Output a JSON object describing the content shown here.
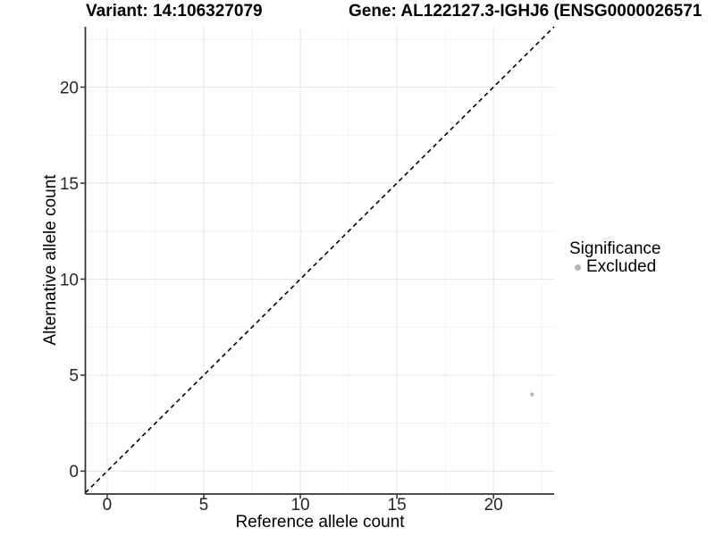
{
  "chart_data": {
    "type": "scatter",
    "titles": {
      "variant": "Variant: 14:106327079",
      "gene": "Gene: AL122127.3-IGHJ6 (ENSG0000026571"
    },
    "xlabel": "Reference allele count",
    "ylabel": "Alternative allele count",
    "xlim": [
      -1.13,
      23.14
    ],
    "ylim": [
      -1.19,
      23.14
    ],
    "x_ticks": [
      0,
      5,
      10,
      15,
      20
    ],
    "y_ticks": [
      0,
      5,
      10,
      15,
      20
    ],
    "x_minor_ticks": [
      2.5,
      7.5,
      12.5,
      17.5,
      22.5
    ],
    "y_minor_ticks": [
      2.5,
      7.5,
      12.5,
      17.5,
      22.5
    ],
    "grid": true,
    "points": [
      {
        "x": 22,
        "y": 4,
        "significance": "Excluded"
      }
    ],
    "abline": {
      "slope": 1,
      "intercept": 0,
      "linetype": "dashed",
      "color": "#000000"
    },
    "legend": {
      "title": "Significance",
      "position": "right",
      "items": [
        {
          "label": "Excluded",
          "color": "#b5b5b5"
        }
      ]
    },
    "colors": {
      "point": "#b5b5b5",
      "axis_line": "#333333",
      "grid_major": "#e7e7e7",
      "grid_minor": "#f2f2f2",
      "tick_text": "#262626"
    }
  }
}
